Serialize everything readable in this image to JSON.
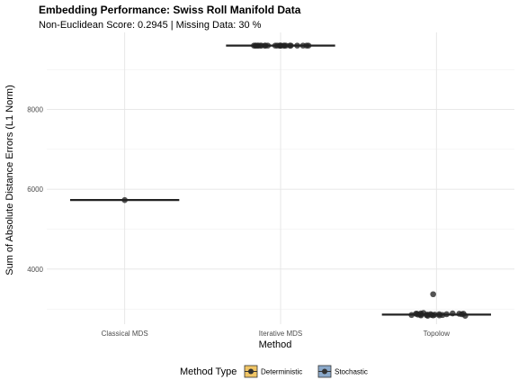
{
  "chart_data": {
    "type": "scatter",
    "title": "Embedding Performance: Swiss Roll Manifold Data",
    "subtitle": "Non-Euclidean Score: 0.2945 | Missing Data: 30 %",
    "xlabel": "Method",
    "ylabel": "Sum of Absolute Distance Errors (L1 Norm)",
    "categories": [
      "Classical MDS",
      "Iterative MDS",
      "Topolow"
    ],
    "y_ticks": [
      4000,
      6000,
      8000
    ],
    "y_tick_labels": [
      "4000",
      "6000",
      "8000"
    ],
    "ylim": [
      2620,
      9930
    ],
    "grid": true,
    "legend": {
      "position": "bottom",
      "title": "Method Type",
      "entries": [
        {
          "label": "Deterministic",
          "color": "#E69F00"
        },
        {
          "label": "Stochastic",
          "color": "#3E6FA6"
        }
      ]
    },
    "method_types": {
      "Classical MDS": "Deterministic",
      "Iterative MDS": "Stochastic",
      "Topolow": "Stochastic"
    },
    "medians": [
      5730,
      9600,
      2860
    ],
    "points": [
      {
        "category": "Classical MDS",
        "values": [
          5730
        ]
      },
      {
        "category": "Iterative MDS",
        "values": [
          9600,
          9600,
          9600,
          9600,
          9600,
          9600,
          9600,
          9600,
          9600,
          9600,
          9600,
          9600,
          9600,
          9600,
          9600,
          9600,
          9600,
          9600,
          9600,
          9600,
          9600,
          9600,
          9600,
          9600,
          9600
        ]
      },
      {
        "category": "Topolow",
        "values": [
          3370,
          2880,
          2860,
          2850,
          2840,
          2870,
          2900,
          2880,
          2830,
          2840,
          2860,
          2870,
          2850,
          2880,
          2890,
          2830,
          2860,
          2850,
          2870,
          2840,
          2880,
          2860,
          2890,
          2850,
          2870
        ]
      }
    ]
  }
}
